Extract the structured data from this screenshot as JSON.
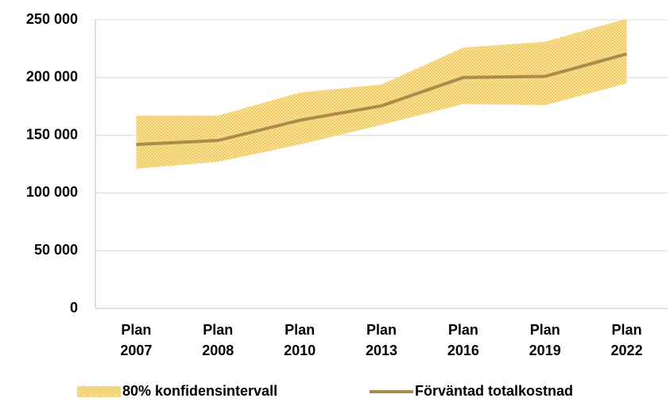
{
  "chart_data": {
    "type": "line",
    "categories": [
      "Plan 2007",
      "Plan 2008",
      "Plan 2010",
      "Plan 2013",
      "Plan 2016",
      "Plan 2019",
      "Plan 2022"
    ],
    "series": [
      {
        "name": "80% konfidensintervall",
        "type": "band",
        "color": "#f5d375",
        "lower": [
          121000,
          127000,
          142000,
          159000,
          177000,
          176000,
          195000
        ],
        "upper": [
          167000,
          167000,
          187000,
          194000,
          226000,
          231000,
          251000
        ]
      },
      {
        "name": "Förväntad totalkostnad",
        "type": "line",
        "color": "#a88d4c",
        "values": [
          142000,
          145500,
          163000,
          175500,
          200000,
          201000,
          220500
        ]
      }
    ],
    "ylim": [
      0,
      250000
    ],
    "yticks": [
      0,
      {
        "value": 50000,
        "label": "50 000"
      },
      {
        "value": 100000,
        "label": "100 000"
      },
      {
        "value": 150000,
        "label": "150 000"
      },
      {
        "value": 200000,
        "label": "200 000"
      },
      {
        "value": 250000,
        "label": "250 000"
      }
    ],
    "grid": true
  }
}
